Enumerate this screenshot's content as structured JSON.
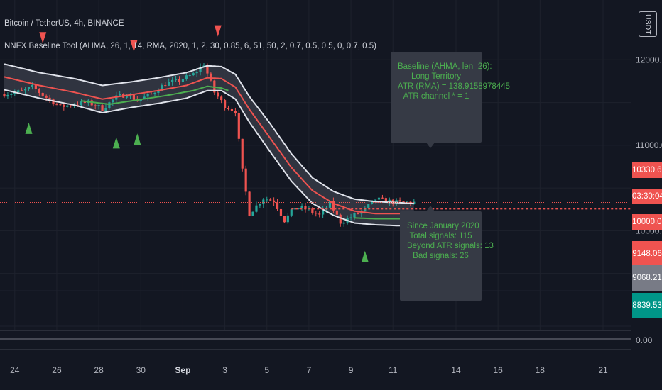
{
  "header": {
    "symbol": "Bitcoin / TetherUS, 4h, BINANCE",
    "indicator": "NNFX Baseline Tool (AHMA, 26, 1, 14, RMA, 2020, 1, 2, 30, 0.85, 6, 51, 50, 2, 0.7, 0.5, 0.5, 0, 0.7, 0.5)"
  },
  "currency": "USDT",
  "tooltips": {
    "baseline": [
      "Baseline (AHMA, len=26):",
      "Long Territory",
      "ATR (RMA) = 138.9158978445",
      "ATR channel * = 1"
    ],
    "stats": [
      "Since January 2020",
      "Total signals: 115",
      "Beyond ATR signals: 13",
      "Bad signals: 26"
    ]
  },
  "price_labels": [
    {
      "text": "10330.60",
      "value": 10330.6,
      "color": "#ef5350"
    },
    {
      "text": "03:30:04",
      "value": 10255,
      "color": "#ef5350"
    },
    {
      "text": "10000.00",
      "value": 10000,
      "color": "#ef5350"
    },
    {
      "text": "9148.06",
      "value": 9148.06,
      "color": "#ef5350"
    },
    {
      "text": "9068.21",
      "value": 9068.21,
      "color": "#787b86"
    },
    {
      "text": "8839.53",
      "value": 8839.53,
      "color": "#009688"
    }
  ],
  "oscillator_label": "0.00",
  "chart_data": {
    "type": "candlestick",
    "ylim": [
      9630,
      12160
    ],
    "yticks": [
      {
        "label": "12000.00",
        "value": 12000
      },
      {
        "label": "11000.00",
        "value": 11000
      },
      {
        "label": "10000.00",
        "value": 10000
      }
    ],
    "xticks": [
      {
        "label": "24",
        "bar": 3,
        "bold": false
      },
      {
        "label": "26",
        "bar": 15,
        "bold": false
      },
      {
        "label": "28",
        "bar": 27,
        "bold": false
      },
      {
        "label": "30",
        "bar": 39,
        "bold": false
      },
      {
        "label": "Sep",
        "bar": 51,
        "bold": true
      },
      {
        "label": "3",
        "bar": 63,
        "bold": false
      },
      {
        "label": "5",
        "bar": 75,
        "bold": false
      },
      {
        "label": "7",
        "bar": 87,
        "bold": false
      },
      {
        "label": "9",
        "bar": 99,
        "bold": false
      },
      {
        "label": "11",
        "bar": 111,
        "bold": false
      },
      {
        "label": "14",
        "bar": 129,
        "bold": false
      },
      {
        "label": "16",
        "bar": 141,
        "bold": false
      },
      {
        "label": "18",
        "bar": 153,
        "bold": false
      },
      {
        "label": "21",
        "bar": 171,
        "bold": false
      }
    ],
    "last_price": 10330.6,
    "prior_level": 10255,
    "price_path": [
      [
        0,
        11600
      ],
      [
        5,
        11630
      ],
      [
        8,
        11680
      ],
      [
        12,
        11560
      ],
      [
        16,
        11450
      ],
      [
        20,
        11480
      ],
      [
        24,
        11500
      ],
      [
        28,
        11430
      ],
      [
        32,
        11560
      ],
      [
        35,
        11600
      ],
      [
        38,
        11520
      ],
      [
        42,
        11600
      ],
      [
        46,
        11720
      ],
      [
        50,
        11760
      ],
      [
        54,
        11830
      ],
      [
        57,
        11950
      ],
      [
        60,
        11620
      ],
      [
        63,
        11460
      ],
      [
        66,
        11400
      ],
      [
        68,
        10700
      ],
      [
        70,
        10200
      ],
      [
        74,
        10380
      ],
      [
        77,
        10350
      ],
      [
        80,
        10120
      ],
      [
        83,
        10270
      ],
      [
        86,
        10260
      ],
      [
        90,
        10180
      ],
      [
        93,
        10320
      ],
      [
        96,
        10100
      ],
      [
        100,
        10180
      ],
      [
        103,
        10250
      ],
      [
        106,
        10370
      ],
      [
        109,
        10350
      ],
      [
        112,
        10330
      ],
      [
        117,
        10330.6
      ]
    ],
    "baseline": [
      [
        0,
        11800
      ],
      [
        10,
        11700
      ],
      [
        20,
        11620
      ],
      [
        28,
        11540
      ],
      [
        36,
        11590
      ],
      [
        44,
        11640
      ],
      [
        52,
        11700
      ],
      [
        58,
        11790
      ],
      [
        62,
        11780
      ],
      [
        66,
        11680
      ],
      [
        70,
        11420
      ],
      [
        76,
        11080
      ],
      [
        82,
        10740
      ],
      [
        88,
        10470
      ],
      [
        94,
        10320
      ],
      [
        100,
        10230
      ],
      [
        106,
        10200
      ],
      [
        112,
        10200
      ],
      [
        117,
        10200
      ]
    ],
    "channel_upper": [
      [
        0,
        11950
      ],
      [
        10,
        11850
      ],
      [
        20,
        11780
      ],
      [
        28,
        11700
      ],
      [
        36,
        11740
      ],
      [
        44,
        11790
      ],
      [
        52,
        11850
      ],
      [
        58,
        11930
      ],
      [
        62,
        11920
      ],
      [
        66,
        11830
      ],
      [
        70,
        11570
      ],
      [
        76,
        11250
      ],
      [
        82,
        10900
      ],
      [
        88,
        10620
      ],
      [
        94,
        10460
      ],
      [
        100,
        10370
      ],
      [
        106,
        10340
      ],
      [
        112,
        10330
      ],
      [
        117,
        10320
      ]
    ],
    "channel_lower": [
      [
        0,
        11650
      ],
      [
        10,
        11550
      ],
      [
        20,
        11470
      ],
      [
        28,
        11380
      ],
      [
        36,
        11440
      ],
      [
        44,
        11490
      ],
      [
        52,
        11550
      ],
      [
        58,
        11640
      ],
      [
        62,
        11640
      ],
      [
        66,
        11540
      ],
      [
        70,
        11270
      ],
      [
        76,
        10920
      ],
      [
        82,
        10580
      ],
      [
        88,
        10320
      ],
      [
        94,
        10180
      ],
      [
        100,
        10090
      ],
      [
        106,
        10070
      ],
      [
        112,
        10060
      ],
      [
        117,
        10060
      ]
    ],
    "inner_line": [
      [
        22,
        11520
      ],
      [
        30,
        11480
      ],
      [
        38,
        11530
      ],
      [
        46,
        11580
      ],
      [
        54,
        11640
      ],
      [
        58,
        11690
      ],
      [
        62,
        11670
      ],
      [
        64,
        11640
      ]
    ],
    "inner_line_late": [
      [
        100,
        10150
      ],
      [
        106,
        10140
      ],
      [
        112,
        10140
      ],
      [
        117,
        10140
      ]
    ],
    "buy_signals": [
      7,
      32,
      38,
      103
    ],
    "sell_signals": [
      11,
      37,
      61
    ],
    "colors": {
      "up": "#26a69a",
      "down": "#ef5350",
      "baseline": "#ef5350",
      "channel": "#e0e3eb",
      "channel_fill": "#363a45",
      "inner": "#4caf50",
      "buy": "#4caf50",
      "sell": "#ef5350"
    }
  }
}
